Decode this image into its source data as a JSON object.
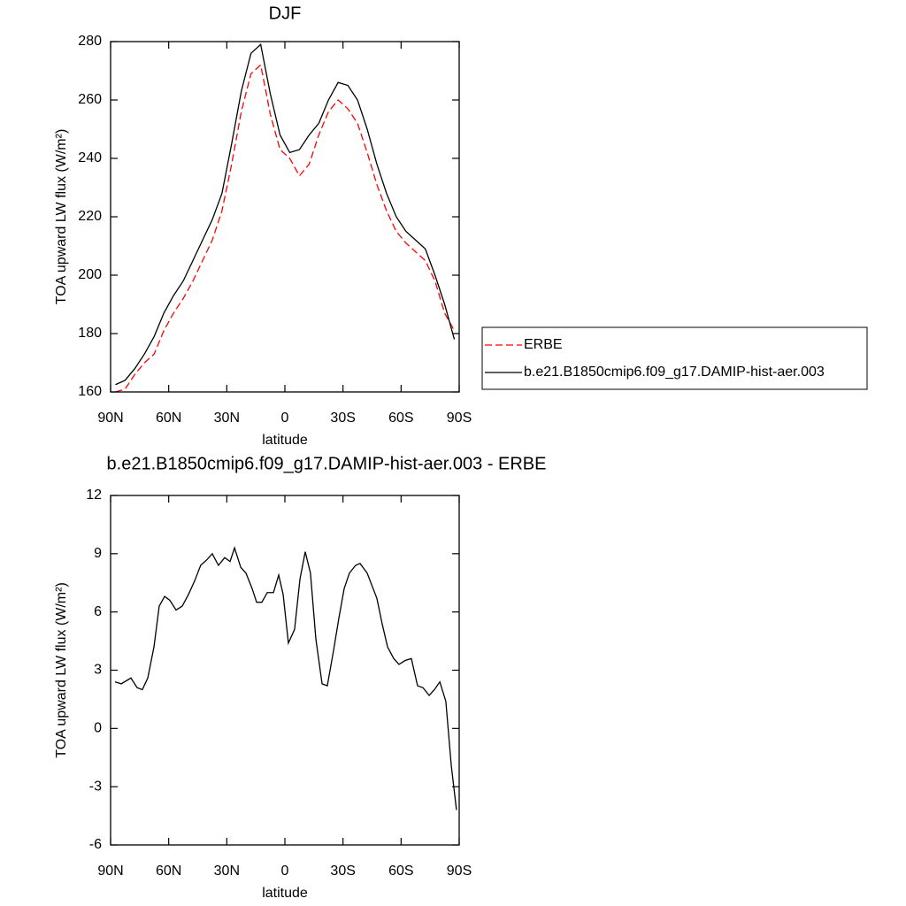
{
  "chart_data": [
    {
      "type": "line",
      "title": "DJF",
      "xlabel": "latitude",
      "ylabel": "TOA upward LW flux (W/m²)",
      "x": [
        87.5,
        82.5,
        77.5,
        72.5,
        67.5,
        62.5,
        57.5,
        52.5,
        47.5,
        42.5,
        37.5,
        32.5,
        27.5,
        22.5,
        17.5,
        12.5,
        7.5,
        2.5,
        -2.5,
        -7.5,
        -12.5,
        -17.5,
        -22.5,
        -27.5,
        -32.5,
        -37.5,
        -42.5,
        -47.5,
        -52.5,
        -57.5,
        -62.5,
        -67.5,
        -72.5,
        -77.5,
        -82.5,
        -87.5
      ],
      "series": [
        {
          "name": "ERBE",
          "color": "#ff0000",
          "line_style": "dashed",
          "values": [
            160,
            161,
            166,
            170,
            173,
            181,
            187,
            192,
            198,
            205,
            212,
            222,
            238,
            256,
            269,
            272,
            255,
            243,
            240,
            234,
            238,
            248,
            256,
            260,
            257,
            252,
            242,
            231,
            222,
            215,
            211,
            208,
            205,
            198,
            187,
            181
          ]
        },
        {
          "name": "b.e21.B1850cmip6.f09_g17.DAMIP-hist-aer.003",
          "color": "#000000",
          "line_style": "solid",
          "values": [
            162.5,
            164,
            168,
            173,
            179,
            187,
            193,
            198,
            205,
            212,
            219,
            228,
            245,
            263,
            276,
            279,
            262,
            248,
            242,
            243,
            248,
            252,
            260,
            266,
            265,
            260,
            250,
            238,
            228,
            220,
            215,
            212,
            209,
            200,
            190,
            178
          ]
        }
      ],
      "xlim": [
        90,
        -90
      ],
      "xticks": [
        {
          "value": 90,
          "label": "90N"
        },
        {
          "value": 60,
          "label": "60N"
        },
        {
          "value": 30,
          "label": "30N"
        },
        0,
        {
          "value": -30,
          "label": "30S"
        },
        {
          "value": -60,
          "label": "60S"
        },
        {
          "value": -90,
          "label": "90S"
        }
      ],
      "ylim": [
        160,
        280
      ],
      "yticks": [
        160,
        180,
        200,
        220,
        240,
        260,
        280
      ],
      "legend": "right"
    },
    {
      "type": "line",
      "title": "b.e21.B1850cmip6.f09_g17.DAMIP-hist-aer.003 - ERBE",
      "xlabel": "latitude",
      "ylabel": "TOA upward LW flux (W/m²)",
      "x": [
        87.7,
        84.5,
        79.5,
        76.3,
        73.6,
        70.8,
        67.6,
        64.9,
        62.1,
        59.4,
        56.2,
        53.0,
        49.8,
        46.6,
        43.5,
        40.2,
        37.5,
        34.3,
        31.1,
        28.3,
        26.0,
        22.8,
        20.1,
        16.9,
        14.6,
        11.9,
        9.1,
        5.9,
        3.2,
        0.9,
        -1.8,
        -5.0,
        -7.8,
        -10.5,
        -13.2,
        -16.0,
        -19.2,
        -21.9,
        -25.1,
        -27.9,
        -30.6,
        -33.3,
        -36.5,
        -38.8,
        -42.5,
        -44.8,
        -47.5,
        -50.2,
        -53.0,
        -56.2,
        -58.9,
        -62.1,
        -65.3,
        -68.5,
        -71.3,
        -74.5,
        -77.2,
        -80.0,
        -83.1,
        -85.9,
        -88.6
      ],
      "series": [
        {
          "color": "#000000",
          "line_style": "solid",
          "values": [
            2.4,
            2.3,
            2.6,
            2.1,
            2.0,
            2.6,
            4.2,
            6.3,
            6.8,
            6.6,
            6.1,
            6.3,
            6.9,
            7.6,
            8.4,
            8.7,
            9.0,
            8.4,
            8.8,
            8.6,
            9.3,
            8.3,
            8.0,
            7.2,
            6.5,
            6.5,
            7.0,
            7.0,
            7.9,
            6.9,
            4.4,
            5.1,
            7.7,
            9.1,
            8.0,
            4.6,
            2.3,
            2.2,
            4.0,
            5.7,
            7.2,
            8.0,
            8.4,
            8.5,
            8.0,
            7.4,
            6.7,
            5.4,
            4.2,
            3.6,
            3.3,
            3.5,
            3.6,
            2.2,
            2.1,
            1.7,
            2.0,
            2.4,
            1.4,
            -1.9,
            -4.2
          ]
        }
      ],
      "xlim": [
        90,
        -90
      ],
      "xticks": [
        {
          "value": 90,
          "label": "90N"
        },
        {
          "value": 60,
          "label": "60N"
        },
        {
          "value": 30,
          "label": "30N"
        },
        0,
        {
          "value": -30,
          "label": "30S"
        },
        {
          "value": -60,
          "label": "60S"
        },
        {
          "value": -90,
          "label": "90S"
        }
      ],
      "ylim": [
        -6,
        12
      ],
      "yticks": [
        -6,
        -3,
        0,
        3,
        6,
        9,
        12
      ]
    }
  ]
}
